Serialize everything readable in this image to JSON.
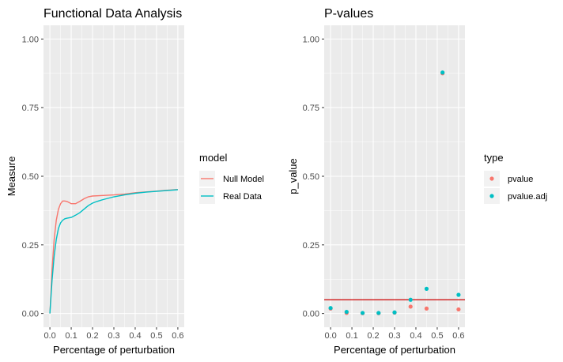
{
  "chart_data": [
    {
      "type": "line",
      "title": "Functional Data Analysis",
      "xlabel": "Percentage of perturbation",
      "ylabel": "Measure",
      "xlim": [
        -0.03,
        0.63
      ],
      "ylim": [
        -0.05,
        1.05
      ],
      "x_ticks": [
        "0.0",
        "0.1",
        "0.2",
        "0.3",
        "0.4",
        "0.5",
        "0.6"
      ],
      "x_tick_values": [
        0,
        0.1,
        0.2,
        0.3,
        0.4,
        0.5,
        0.6
      ],
      "y_ticks": [
        "0.00",
        "0.25",
        "0.50",
        "0.75",
        "1.00"
      ],
      "y_tick_values": [
        0,
        0.25,
        0.5,
        0.75,
        1.0
      ],
      "grid": true,
      "legend": {
        "title": "model",
        "position": "right",
        "entries": [
          {
            "label": "Null Model",
            "color": "#F8766D"
          },
          {
            "label": "Real Data",
            "color": "#00BFC4"
          }
        ]
      },
      "series": [
        {
          "name": "Null Model",
          "color": "#F8766D",
          "x": [
            0,
            0.01,
            0.02,
            0.03,
            0.04,
            0.05,
            0.06,
            0.07,
            0.08,
            0.09,
            0.1,
            0.12,
            0.14,
            0.16,
            0.18,
            0.2,
            0.25,
            0.3,
            0.35,
            0.4,
            0.45,
            0.5,
            0.55,
            0.6
          ],
          "y": [
            0.0,
            0.16,
            0.27,
            0.34,
            0.38,
            0.4,
            0.41,
            0.41,
            0.408,
            0.404,
            0.4,
            0.4,
            0.408,
            0.418,
            0.425,
            0.428,
            0.43,
            0.432,
            0.435,
            0.44,
            0.443,
            0.446,
            0.449,
            0.452
          ]
        },
        {
          "name": "Real Data",
          "color": "#00BFC4",
          "x": [
            0,
            0.01,
            0.02,
            0.03,
            0.04,
            0.05,
            0.06,
            0.07,
            0.08,
            0.1,
            0.12,
            0.14,
            0.16,
            0.18,
            0.2,
            0.22,
            0.25,
            0.3,
            0.35,
            0.4,
            0.45,
            0.5,
            0.55,
            0.6
          ],
          "y": [
            0.0,
            0.12,
            0.21,
            0.27,
            0.31,
            0.33,
            0.34,
            0.345,
            0.347,
            0.35,
            0.358,
            0.367,
            0.38,
            0.393,
            0.402,
            0.408,
            0.415,
            0.425,
            0.432,
            0.438,
            0.442,
            0.445,
            0.448,
            0.451
          ]
        }
      ]
    },
    {
      "type": "scatter",
      "title": "P-values",
      "xlabel": "Percentage of perturbation",
      "ylabel": "p_value",
      "xlim": [
        -0.03,
        0.63
      ],
      "ylim": [
        -0.05,
        1.05
      ],
      "x_ticks": [
        "0.0",
        "0.1",
        "0.2",
        "0.3",
        "0.4",
        "0.5",
        "0.6"
      ],
      "x_tick_values": [
        0,
        0.1,
        0.2,
        0.3,
        0.4,
        0.5,
        0.6
      ],
      "y_ticks": [
        "0.00",
        "0.25",
        "0.50",
        "0.75",
        "1.00"
      ],
      "y_tick_values": [
        0,
        0.25,
        0.5,
        0.75,
        1.0
      ],
      "grid": true,
      "hline": {
        "y": 0.05,
        "color": "#CC0000"
      },
      "legend": {
        "title": "type",
        "position": "right",
        "entries": [
          {
            "label": "pvalue",
            "color": "#F8766D"
          },
          {
            "label": "pvalue.adj",
            "color": "#00BFC4"
          }
        ]
      },
      "series": [
        {
          "name": "pvalue",
          "color": "#F8766D",
          "x": [
            0.0,
            0.075,
            0.15,
            0.225,
            0.3,
            0.375,
            0.45,
            0.525,
            0.6
          ],
          "y": [
            0.018,
            0.002,
            0.001,
            0.001,
            0.003,
            0.025,
            0.018,
            0.875,
            0.015
          ]
        },
        {
          "name": "pvalue.adj",
          "color": "#00BFC4",
          "x": [
            0.0,
            0.075,
            0.15,
            0.225,
            0.3,
            0.375,
            0.45,
            0.525,
            0.6
          ],
          "y": [
            0.02,
            0.006,
            0.002,
            0.002,
            0.004,
            0.05,
            0.09,
            0.878,
            0.068
          ]
        }
      ]
    }
  ]
}
